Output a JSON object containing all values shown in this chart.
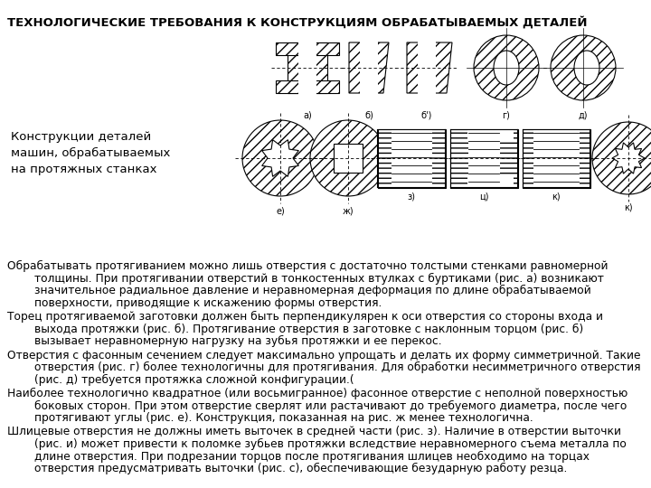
{
  "title": "ТЕХНОЛОГИЧЕСКИЕ ТРЕБОВАНИЯ К КОНСТРУКЦИЯМ ОБРАБАТЫВАЕМЫХ ДЕТАЛЕЙ",
  "caption": "Конструкции деталей\nмашин, обрабатываемых\nна протяжных станках",
  "body_paragraphs": [
    {
      "first_line": "Обрабатывать протягиванием можно лишь отверстия с достаточно толстыми стенками равномерной",
      "rest": "толщины. При протягивании отверстий в тонкостенных втулках с буртиками (рис. а) возникают\nзначительное радиальное давление и неравномерная деформация по длине обрабатываемой\nповерхности, приводящие к искажению формы отверстия."
    },
    {
      "first_line": "Торец протягиваемой заготовки должен быть перпендикулярен к оси отверстия со стороны входа и",
      "rest": "выхода протяжки (рис. б). Протягивание отверстия в заготовке с наклонным торцом (рис. б)\nвызывает неравномерную нагрузку на зубья протяжки и ее перекос."
    },
    {
      "first_line": "Отверстия с фасонным сечением следует максимально упрощать и делать их форму симметричной. Такие",
      "rest": "отверстия (рис. г) более технологичны для протягивания. Для обработки несимметричного отверстия\n(рис. д) требуется протяжка сложной конфигурации.("
    },
    {
      "first_line": "Наиболее технологично квадратное (или восьмигранное) фасонное отверстие с неполной поверхностью",
      "rest": "боковых сторон. При этом отверстие сверлят или растачивают до требуемого диаметра, после чего\nпротягивают углы (рис. е). Конструкция, показанная на рис. ж менее технологична."
    },
    {
      "first_line": "Шлицевые отверстия не должны иметь выточек в средней части (рис. з). Наличие в отверстии выточки",
      "rest": "(рис. и) может привести к поломке зубьев протяжки вследствие неравномерного съема металла по\nдлине отверстия. При подрезании торцов после протягивания шлицев необходимо на торцах\nотверстия предусматривать выточки (рис. с), обеспечивающие безударную работу резца."
    }
  ],
  "bg_color": "#ffffff",
  "title_fontsize": 9.5,
  "caption_fontsize": 9.5,
  "body_fontsize": 8.8,
  "title_color": "#000000",
  "body_color": "#000000"
}
